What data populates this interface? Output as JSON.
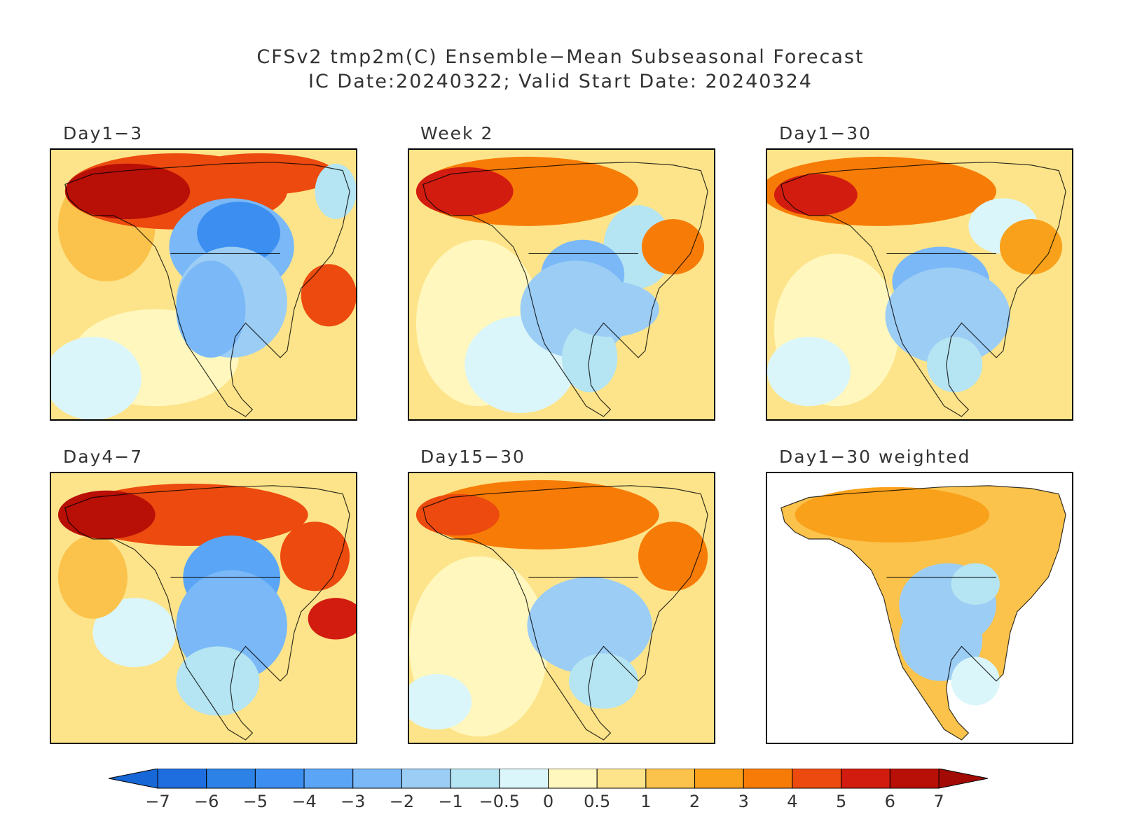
{
  "title_line1": "CFSv2 tmp2m(C) Ensemble−Mean Subseasonal Forecast",
  "title_line2": "IC Date:20240322; Valid Start Date: 20240324",
  "panels": [
    {
      "label": "Day1−3",
      "style": "d13"
    },
    {
      "label": "Week 2",
      "style": "wk2"
    },
    {
      "label": "Day1−30",
      "style": "d130"
    },
    {
      "label": "Day4−7",
      "style": "d47"
    },
    {
      "label": "Day15−30",
      "style": "d1530"
    },
    {
      "label": "Day1−30 weighted",
      "style": "weighted"
    }
  ],
  "colorbar": {
    "labels": [
      "−7",
      "−6",
      "−5",
      "−4",
      "−3",
      "−2",
      "−1",
      "−0.5",
      "0",
      "0.5",
      "1",
      "2",
      "3",
      "4",
      "5",
      "6",
      "7"
    ],
    "colors": [
      "#1e6ee0",
      "#2c82e6",
      "#3c8ff0",
      "#5aa5f5",
      "#7ab8f7",
      "#9ccdf5",
      "#b5e4f2",
      "#daf6fb",
      "#fff7bd",
      "#fde48a",
      "#fbc34c",
      "#f9a11b",
      "#f77c07",
      "#ec4a0e",
      "#d21c10",
      "#b80f07"
    ],
    "under_color": "#1767d6",
    "over_color": "#a20b05"
  }
}
